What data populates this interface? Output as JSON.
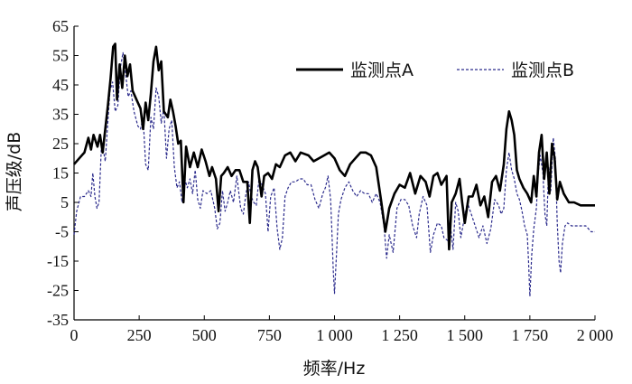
{
  "chart_data": {
    "type": "line",
    "title": "",
    "xlabel": "频率/Hz",
    "ylabel": "声压级/dB",
    "xlim": [
      0,
      2000
    ],
    "ylim": [
      -35,
      65
    ],
    "x_ticks": [
      0,
      250,
      500,
      750,
      1000,
      1250,
      1500,
      1750,
      2000
    ],
    "x_tick_labels": [
      "0",
      "250",
      "500",
      "750",
      "1 000",
      "1 250",
      "1 500",
      "1 750",
      "2 000"
    ],
    "y_ticks": [
      65,
      55,
      45,
      35,
      25,
      15,
      5,
      -5,
      -15,
      -25,
      -35
    ],
    "y_tick_labels": [
      "65",
      "55",
      "45",
      "35",
      "25",
      "15",
      "5",
      "-5",
      "-15",
      "-25",
      "-35"
    ],
    "grid": false,
    "legend_position": "top-right",
    "series": [
      {
        "name": "监测点A",
        "color": "#000000",
        "style": "solid",
        "points": [
          [
            0,
            18
          ],
          [
            20,
            20
          ],
          [
            40,
            22
          ],
          [
            55,
            27
          ],
          [
            65,
            23
          ],
          [
            75,
            28
          ],
          [
            90,
            24
          ],
          [
            100,
            28
          ],
          [
            110,
            22
          ],
          [
            120,
            30
          ],
          [
            130,
            38
          ],
          [
            140,
            47
          ],
          [
            150,
            58
          ],
          [
            158,
            59
          ],
          [
            165,
            40
          ],
          [
            175,
            52
          ],
          [
            185,
            44
          ],
          [
            195,
            55
          ],
          [
            205,
            48
          ],
          [
            215,
            52
          ],
          [
            225,
            43
          ],
          [
            240,
            40
          ],
          [
            255,
            37
          ],
          [
            265,
            30
          ],
          [
            275,
            39
          ],
          [
            285,
            33
          ],
          [
            295,
            42
          ],
          [
            305,
            53
          ],
          [
            315,
            58
          ],
          [
            325,
            50
          ],
          [
            335,
            53
          ],
          [
            345,
            36
          ],
          [
            360,
            34
          ],
          [
            370,
            40
          ],
          [
            380,
            36
          ],
          [
            390,
            31
          ],
          [
            400,
            25
          ],
          [
            410,
            26
          ],
          [
            420,
            5
          ],
          [
            430,
            24
          ],
          [
            445,
            17
          ],
          [
            460,
            22
          ],
          [
            475,
            17
          ],
          [
            490,
            23
          ],
          [
            505,
            19
          ],
          [
            520,
            14
          ],
          [
            530,
            17
          ],
          [
            545,
            13
          ],
          [
            555,
            2
          ],
          [
            565,
            14
          ],
          [
            575,
            15
          ],
          [
            590,
            17
          ],
          [
            605,
            14
          ],
          [
            620,
            16
          ],
          [
            635,
            16
          ],
          [
            650,
            12
          ],
          [
            665,
            12
          ],
          [
            675,
            -2
          ],
          [
            685,
            16
          ],
          [
            695,
            19
          ],
          [
            705,
            17
          ],
          [
            720,
            7
          ],
          [
            730,
            14
          ],
          [
            745,
            15
          ],
          [
            760,
            13
          ],
          [
            775,
            18
          ],
          [
            790,
            17
          ],
          [
            810,
            21
          ],
          [
            830,
            22
          ],
          [
            850,
            19
          ],
          [
            870,
            22
          ],
          [
            900,
            21
          ],
          [
            920,
            19
          ],
          [
            940,
            20
          ],
          [
            960,
            21
          ],
          [
            980,
            22
          ],
          [
            1000,
            20
          ],
          [
            1020,
            16
          ],
          [
            1040,
            14
          ],
          [
            1060,
            18
          ],
          [
            1080,
            20
          ],
          [
            1100,
            22
          ],
          [
            1120,
            22
          ],
          [
            1140,
            21
          ],
          [
            1160,
            17
          ],
          [
            1180,
            5
          ],
          [
            1195,
            -5
          ],
          [
            1210,
            3
          ],
          [
            1230,
            8
          ],
          [
            1250,
            11
          ],
          [
            1270,
            10
          ],
          [
            1290,
            15
          ],
          [
            1310,
            8
          ],
          [
            1330,
            14
          ],
          [
            1350,
            12
          ],
          [
            1365,
            7
          ],
          [
            1380,
            14
          ],
          [
            1395,
            15
          ],
          [
            1410,
            11
          ],
          [
            1430,
            14
          ],
          [
            1440,
            -11
          ],
          [
            1450,
            5
          ],
          [
            1465,
            8
          ],
          [
            1480,
            13
          ],
          [
            1490,
            5
          ],
          [
            1500,
            -2
          ],
          [
            1515,
            7
          ],
          [
            1530,
            7
          ],
          [
            1545,
            11
          ],
          [
            1560,
            4
          ],
          [
            1575,
            7
          ],
          [
            1590,
            0
          ],
          [
            1605,
            12
          ],
          [
            1620,
            14
          ],
          [
            1635,
            9
          ],
          [
            1650,
            18
          ],
          [
            1660,
            30
          ],
          [
            1670,
            36
          ],
          [
            1680,
            33
          ],
          [
            1690,
            28
          ],
          [
            1700,
            16
          ],
          [
            1710,
            13
          ],
          [
            1725,
            10
          ],
          [
            1740,
            8
          ],
          [
            1755,
            5
          ],
          [
            1765,
            14
          ],
          [
            1775,
            7
          ],
          [
            1785,
            22
          ],
          [
            1795,
            28
          ],
          [
            1805,
            13
          ],
          [
            1815,
            22
          ],
          [
            1825,
            8
          ],
          [
            1835,
            25
          ],
          [
            1845,
            20
          ],
          [
            1855,
            6
          ],
          [
            1865,
            12
          ],
          [
            1880,
            8
          ],
          [
            1900,
            5
          ],
          [
            1920,
            5
          ],
          [
            1945,
            4
          ],
          [
            1970,
            4
          ],
          [
            2000,
            4
          ]
        ]
      },
      {
        "name": "监测点B",
        "color": "#2b2b8c",
        "style": "dashed",
        "points": [
          [
            0,
            -6
          ],
          [
            10,
            2
          ],
          [
            25,
            7
          ],
          [
            40,
            7
          ],
          [
            55,
            9
          ],
          [
            65,
            7
          ],
          [
            72,
            15
          ],
          [
            80,
            7
          ],
          [
            88,
            3
          ],
          [
            96,
            5
          ],
          [
            105,
            24
          ],
          [
            112,
            23
          ],
          [
            120,
            19
          ],
          [
            128,
            30
          ],
          [
            138,
            43
          ],
          [
            148,
            46
          ],
          [
            158,
            36
          ],
          [
            168,
            38
          ],
          [
            178,
            51
          ],
          [
            188,
            56
          ],
          [
            198,
            49
          ],
          [
            208,
            41
          ],
          [
            218,
            43
          ],
          [
            230,
            36
          ],
          [
            245,
            31
          ],
          [
            255,
            30
          ],
          [
            265,
            34
          ],
          [
            275,
            18
          ],
          [
            285,
            16
          ],
          [
            295,
            34
          ],
          [
            305,
            30
          ],
          [
            315,
            44
          ],
          [
            325,
            41
          ],
          [
            335,
            32
          ],
          [
            345,
            37
          ],
          [
            355,
            20
          ],
          [
            365,
            30
          ],
          [
            375,
            33
          ],
          [
            385,
            17
          ],
          [
            395,
            10
          ],
          [
            405,
            12
          ],
          [
            415,
            5
          ],
          [
            425,
            13
          ],
          [
            435,
            10
          ],
          [
            445,
            13
          ],
          [
            455,
            8
          ],
          [
            465,
            16
          ],
          [
            475,
            6
          ],
          [
            485,
            3
          ],
          [
            495,
            9
          ],
          [
            510,
            8
          ],
          [
            525,
            9
          ],
          [
            540,
            3
          ],
          [
            550,
            -4
          ],
          [
            560,
            -2
          ],
          [
            570,
            9
          ],
          [
            580,
            2
          ],
          [
            590,
            5
          ],
          [
            600,
            9
          ],
          [
            612,
            5
          ],
          [
            625,
            14
          ],
          [
            640,
            3
          ],
          [
            650,
            1
          ],
          [
            660,
            8
          ],
          [
            670,
            12
          ],
          [
            680,
            7
          ],
          [
            690,
            5
          ],
          [
            700,
            4
          ],
          [
            710,
            13
          ],
          [
            722,
            11
          ],
          [
            735,
            8
          ],
          [
            745,
            -5
          ],
          [
            755,
            7
          ],
          [
            768,
            10
          ],
          [
            780,
            -4
          ],
          [
            790,
            -11
          ],
          [
            800,
            -7
          ],
          [
            810,
            7
          ],
          [
            822,
            10
          ],
          [
            835,
            12
          ],
          [
            850,
            12
          ],
          [
            865,
            13
          ],
          [
            880,
            13
          ],
          [
            895,
            11
          ],
          [
            910,
            11
          ],
          [
            925,
            6
          ],
          [
            940,
            3
          ],
          [
            955,
            8
          ],
          [
            965,
            10
          ],
          [
            975,
            14
          ],
          [
            985,
            6
          ],
          [
            990,
            -5
          ],
          [
            995,
            -18
          ],
          [
            1000,
            -26
          ],
          [
            1008,
            -12
          ],
          [
            1015,
            1
          ],
          [
            1025,
            6
          ],
          [
            1040,
            10
          ],
          [
            1055,
            12
          ],
          [
            1070,
            9
          ],
          [
            1085,
            7
          ],
          [
            1100,
            9
          ],
          [
            1115,
            8
          ],
          [
            1130,
            8
          ],
          [
            1145,
            5
          ],
          [
            1160,
            8
          ],
          [
            1175,
            5
          ],
          [
            1190,
            -3
          ],
          [
            1200,
            -14
          ],
          [
            1210,
            -6
          ],
          [
            1225,
            -12
          ],
          [
            1240,
            3
          ],
          [
            1255,
            6
          ],
          [
            1270,
            6
          ],
          [
            1285,
            4
          ],
          [
            1300,
            -3
          ],
          [
            1315,
            -7
          ],
          [
            1325,
            1
          ],
          [
            1340,
            7
          ],
          [
            1355,
            4
          ],
          [
            1368,
            -12
          ],
          [
            1380,
            -6
          ],
          [
            1395,
            -2
          ],
          [
            1410,
            -3
          ],
          [
            1420,
            -7
          ],
          [
            1435,
            -8
          ],
          [
            1445,
            -3
          ],
          [
            1455,
            -11
          ],
          [
            1465,
            5
          ],
          [
            1475,
            2
          ],
          [
            1485,
            -7
          ],
          [
            1495,
            -2
          ],
          [
            1510,
            5
          ],
          [
            1525,
            1
          ],
          [
            1540,
            -3
          ],
          [
            1555,
            -7
          ],
          [
            1570,
            -3
          ],
          [
            1585,
            -9
          ],
          [
            1600,
            -4
          ],
          [
            1615,
            6
          ],
          [
            1630,
            4
          ],
          [
            1640,
            1
          ],
          [
            1650,
            3
          ],
          [
            1660,
            16
          ],
          [
            1670,
            22
          ],
          [
            1680,
            16
          ],
          [
            1690,
            13
          ],
          [
            1700,
            8
          ],
          [
            1710,
            6
          ],
          [
            1720,
            2
          ],
          [
            1730,
            -3
          ],
          [
            1740,
            -6
          ],
          [
            1745,
            -15
          ],
          [
            1750,
            -27
          ],
          [
            1757,
            -13
          ],
          [
            1765,
            -4
          ],
          [
            1775,
            3
          ],
          [
            1782,
            15
          ],
          [
            1790,
            21
          ],
          [
            1800,
            15
          ],
          [
            1808,
            1
          ],
          [
            1815,
            -3
          ],
          [
            1822,
            17
          ],
          [
            1830,
            9
          ],
          [
            1840,
            27
          ],
          [
            1848,
            20
          ],
          [
            1855,
            -2
          ],
          [
            1862,
            -15
          ],
          [
            1868,
            -19
          ],
          [
            1875,
            -9
          ],
          [
            1885,
            -3
          ],
          [
            1895,
            -2
          ],
          [
            1910,
            -3
          ],
          [
            1925,
            -3
          ],
          [
            1945,
            -3
          ],
          [
            1965,
            -3
          ],
          [
            1985,
            -5
          ],
          [
            2000,
            -5
          ]
        ]
      }
    ]
  }
}
